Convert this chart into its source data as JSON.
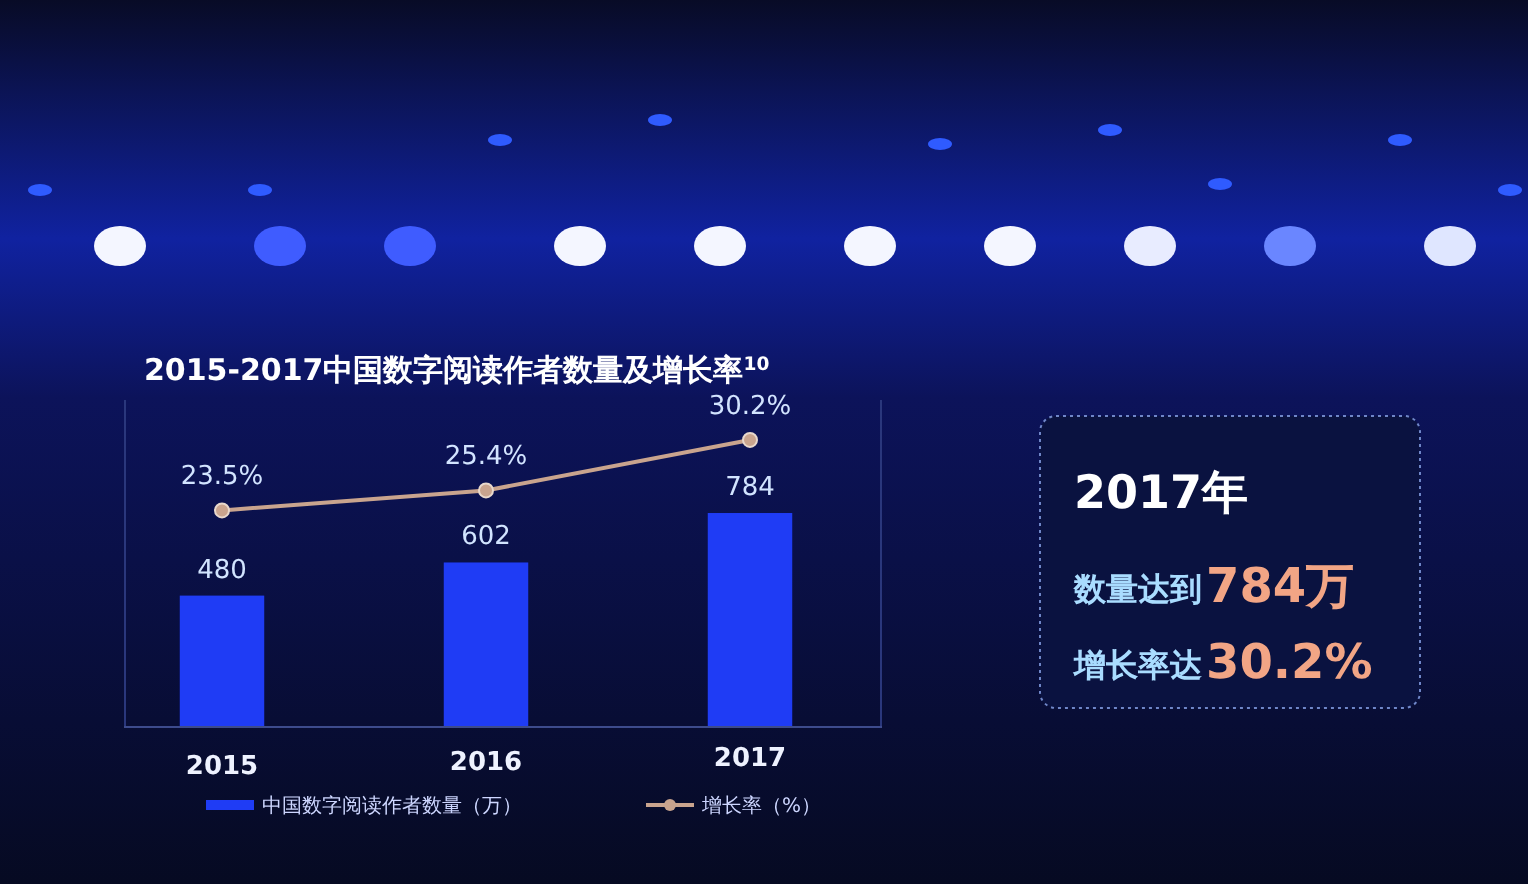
{
  "chart_data": [
    {
      "type": "bar",
      "title": "2015-2017中国数字阅读作者数量及增长率$^{10}$",
      "categories": [
        "2015",
        "2016",
        "2017"
      ],
      "series": [
        {
          "name": "中国数字阅读作者数量（万）",
          "color": "#1f3cf5",
          "values": [
            480,
            602,
            784
          ],
          "value_labels": [
            "480",
            "602",
            "784"
          ]
        },
        {
          "name": "增长率（%）",
          "type": "line",
          "axis": "y2",
          "marker": "circle",
          "color": "#c9a48e",
          "values": [
            23.5,
            25.4,
            30.2
          ],
          "value_labels": [
            "23.5%",
            "25.4%",
            "30.2%"
          ]
        }
      ],
      "ylim": [
        0,
        1200
      ],
      "y2lim": [
        3,
        34
      ],
      "legend": "bottom",
      "tick_labels": "x"
    },
    {
      "type": "other",
      "title": "2017年",
      "annotations": [
        "数量达到",
        "784万",
        "增长率达",
        "30.2%"
      ]
    }
  ]
}
